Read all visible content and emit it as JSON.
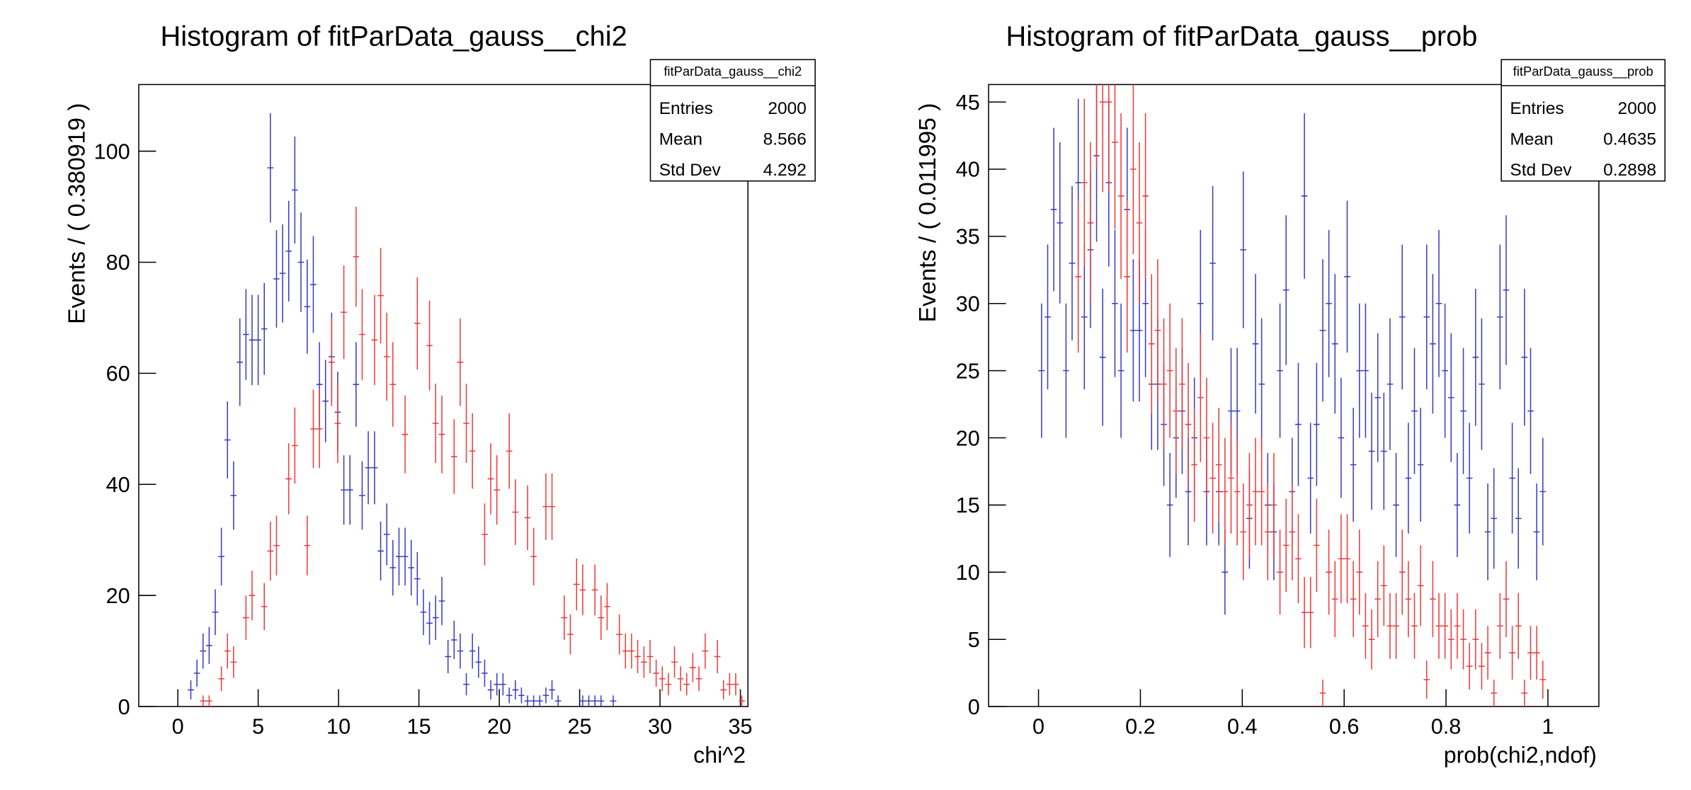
{
  "chart_data": [
    {
      "type": "errorbar",
      "title": "Histogram of fitParData_gauss__chi2",
      "xlabel": "chi^2",
      "ylabel": "Events / ( 0.380919 )",
      "bin_width": 0.380919,
      "xlim": [
        -2.43,
        35.47
      ],
      "xticks": [
        0,
        5,
        10,
        15,
        20,
        25,
        30,
        35
      ],
      "ylim": [
        0,
        112
      ],
      "yticks": [
        0,
        20,
        40,
        60,
        80,
        100
      ],
      "series": [
        {
          "color": "#3c3cc0",
          "x": [
            0.81,
            1.19,
            1.57,
            1.95,
            2.33,
            2.71,
            3.09,
            3.47,
            3.86,
            4.24,
            4.62,
            5.0,
            5.38,
            5.76,
            6.14,
            6.52,
            6.9,
            7.28,
            7.66,
            8.05,
            8.43,
            8.81,
            9.19,
            9.57,
            9.95,
            10.33,
            10.71,
            11.09,
            11.47,
            11.85,
            12.24,
            12.62,
            13.0,
            13.38,
            13.76,
            14.14,
            14.52,
            14.9,
            15.28,
            15.66,
            16.04,
            16.43,
            16.81,
            17.19,
            17.57,
            17.95,
            18.33,
            18.71,
            19.09,
            19.47,
            19.85,
            20.23,
            20.62,
            21.0,
            21.38,
            21.76,
            22.14,
            22.52,
            22.9,
            23.28,
            23.66,
            25.19,
            25.57,
            25.95,
            26.33,
            27.09
          ],
          "values": [
            3,
            6,
            10,
            11,
            17,
            27,
            48,
            38,
            62,
            67,
            66,
            66,
            68,
            97,
            77,
            78,
            82,
            93,
            80,
            72,
            76,
            58,
            55,
            63,
            53,
            39,
            39,
            58,
            38,
            43,
            43,
            28,
            31,
            25,
            27,
            27,
            25,
            23,
            17,
            15,
            16,
            19,
            9,
            12,
            10,
            4,
            10,
            8,
            6,
            3,
            4,
            4,
            2,
            3,
            2,
            1,
            1,
            1,
            2,
            3,
            1,
            1,
            1,
            1,
            1,
            1
          ]
        },
        {
          "color": "#ee3b3b",
          "x": [
            1.57,
            1.95,
            2.71,
            3.09,
            3.47,
            4.24,
            4.62,
            5.38,
            5.76,
            6.14,
            6.9,
            7.28,
            8.05,
            8.43,
            8.81,
            9.57,
            9.95,
            10.33,
            11.09,
            11.47,
            12.24,
            12.62,
            13.0,
            13.38,
            14.14,
            14.9,
            15.66,
            16.04,
            16.43,
            17.19,
            17.57,
            17.95,
            18.33,
            19.09,
            19.47,
            19.85,
            20.62,
            21.0,
            21.76,
            22.14,
            22.9,
            23.28,
            24.04,
            24.42,
            24.81,
            25.19,
            25.95,
            26.33,
            26.71,
            27.47,
            27.85,
            28.23,
            28.61,
            29.0,
            29.38,
            29.76,
            30.14,
            30.52,
            30.9,
            31.28,
            31.66,
            32.04,
            32.42,
            32.81,
            33.57,
            33.95,
            34.33,
            34.71,
            35.09
          ],
          "values": [
            1,
            1,
            5,
            10,
            8,
            16,
            20,
            18,
            28,
            29,
            41,
            47,
            29,
            50,
            50,
            62,
            51,
            71,
            81,
            67,
            66,
            74,
            63,
            58,
            49,
            69,
            65,
            51,
            49,
            45,
            62,
            51,
            46,
            31,
            41,
            39,
            46,
            35,
            34,
            27,
            36,
            36,
            16,
            13,
            22,
            21,
            21,
            16,
            18,
            13,
            10,
            10,
            9,
            8,
            9,
            6,
            5,
            4,
            8,
            5,
            4,
            7,
            5,
            10,
            9,
            3,
            4,
            4,
            1
          ]
        }
      ],
      "stats": {
        "title": "fitParData_gauss__chi2",
        "rows": [
          {
            "label": "Entries",
            "value": 2000
          },
          {
            "label": "Mean",
            "value": 8.566
          },
          {
            "label": "Std Dev",
            "value": 4.292
          }
        ]
      }
    },
    {
      "type": "errorbar",
      "title": "Histogram of fitParData_gauss__prob",
      "xlabel": "prob(chi2,ndof)",
      "ylabel": "Events / ( 0.011995 )",
      "bin_width": 0.011995,
      "xlim": [
        -0.098,
        1.1
      ],
      "xticks": [
        0,
        0.2,
        0.4,
        0.6,
        0.8,
        1
      ],
      "ylim": [
        0,
        46.3
      ],
      "yticks": [
        0,
        5,
        10,
        15,
        20,
        25,
        30,
        35,
        40,
        45
      ],
      "series": [
        {
          "color": "#3c3cc0",
          "x": [
            0.006,
            0.018,
            0.03,
            0.042,
            0.054,
            0.066,
            0.078,
            0.09,
            0.102,
            0.114,
            0.126,
            0.138,
            0.15,
            0.162,
            0.174,
            0.186,
            0.198,
            0.21,
            0.222,
            0.234,
            0.246,
            0.258,
            0.27,
            0.282,
            0.294,
            0.306,
            0.318,
            0.33,
            0.342,
            0.354,
            0.366,
            0.378,
            0.39,
            0.402,
            0.414,
            0.426,
            0.438,
            0.45,
            0.462,
            0.474,
            0.486,
            0.498,
            0.51,
            0.522,
            0.534,
            0.546,
            0.558,
            0.57,
            0.582,
            0.594,
            0.606,
            0.618,
            0.63,
            0.642,
            0.654,
            0.666,
            0.678,
            0.69,
            0.702,
            0.714,
            0.726,
            0.738,
            0.75,
            0.762,
            0.774,
            0.786,
            0.798,
            0.81,
            0.822,
            0.834,
            0.846,
            0.858,
            0.87,
            0.882,
            0.894,
            0.906,
            0.918,
            0.93,
            0.942,
            0.954,
            0.966,
            0.978,
            0.99
          ],
          "values": [
            25,
            29,
            37,
            36,
            25,
            33,
            39,
            29,
            34,
            41,
            26,
            39,
            30,
            25,
            37,
            28,
            28,
            30,
            24,
            24,
            21,
            15,
            20,
            22,
            16,
            20,
            30,
            16,
            33,
            16,
            10,
            22,
            22,
            34,
            14,
            27,
            24,
            15,
            13,
            25,
            31,
            16,
            21,
            38,
            17,
            21,
            28,
            30,
            27,
            20,
            32,
            18,
            25,
            25,
            19,
            23,
            19,
            24,
            15,
            29,
            17,
            22,
            18,
            29,
            27,
            30,
            25,
            23,
            15,
            22,
            17,
            26,
            24,
            13,
            14,
            29,
            31,
            17,
            14,
            26,
            22,
            13,
            16
          ]
        },
        {
          "color": "#ee3b3b",
          "x": [
            0.078,
            0.09,
            0.102,
            0.114,
            0.126,
            0.138,
            0.15,
            0.162,
            0.174,
            0.186,
            0.198,
            0.21,
            0.222,
            0.234,
            0.246,
            0.258,
            0.27,
            0.282,
            0.294,
            0.306,
            0.318,
            0.33,
            0.342,
            0.354,
            0.366,
            0.378,
            0.39,
            0.402,
            0.414,
            0.426,
            0.438,
            0.45,
            0.462,
            0.474,
            0.486,
            0.498,
            0.51,
            0.522,
            0.534,
            0.546,
            0.558,
            0.57,
            0.582,
            0.594,
            0.606,
            0.618,
            0.63,
            0.642,
            0.654,
            0.666,
            0.678,
            0.69,
            0.702,
            0.714,
            0.726,
            0.738,
            0.75,
            0.762,
            0.774,
            0.786,
            0.798,
            0.81,
            0.822,
            0.834,
            0.846,
            0.858,
            0.87,
            0.882,
            0.894,
            0.906,
            0.918,
            0.93,
            0.942,
            0.954,
            0.966,
            0.978,
            0.99
          ],
          "values": [
            32,
            39,
            36,
            47,
            45,
            45,
            42,
            38,
            32,
            40,
            36,
            38,
            27,
            28,
            24,
            25,
            22,
            24,
            21,
            18,
            23,
            20,
            17,
            18,
            16,
            17,
            16,
            13,
            15,
            16,
            16,
            13,
            15,
            10,
            12,
            13,
            11,
            7,
            7,
            12,
            1,
            10,
            8,
            11,
            11,
            8,
            10,
            6,
            5,
            8,
            9,
            6,
            6,
            10,
            8,
            6,
            9,
            2,
            8,
            6,
            6,
            5,
            6,
            5,
            3,
            5,
            3,
            4,
            1,
            6,
            8,
            4,
            6,
            1,
            4,
            4,
            2
          ]
        }
      ],
      "stats": {
        "title": "fitParData_gauss__prob",
        "rows": [
          {
            "label": "Entries",
            "value": 2000
          },
          {
            "label": "Mean",
            "value": 0.4635
          },
          {
            "label": "Std Dev",
            "value": 0.2898
          }
        ]
      }
    }
  ]
}
